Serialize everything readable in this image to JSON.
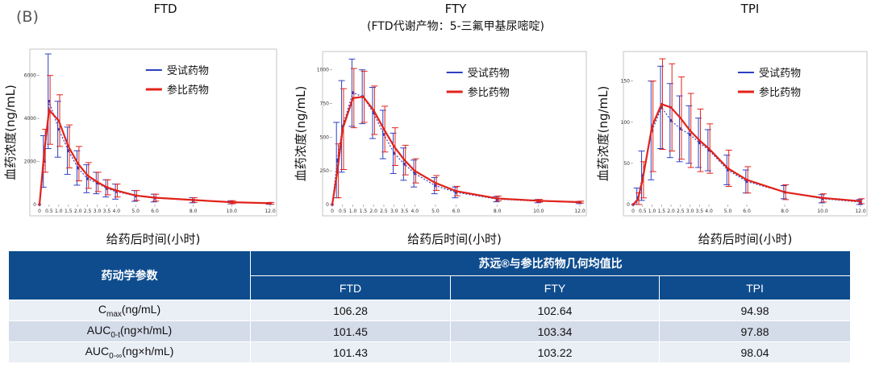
{
  "panel_label": "(B)",
  "chart_data": [
    {
      "type": "line",
      "title": "FTD",
      "subtitle": "",
      "xlabel": "给药后时间(小时)",
      "ylabel": "血药浓度(ng/mL)",
      "xlim": [
        0,
        12
      ],
      "ylim": [
        0,
        7000
      ],
      "xticks": [
        "0",
        "0.5",
        "1.0",
        "1.5",
        "2.0",
        "2.5",
        "3.0",
        "3.5",
        "4.0",
        "5.0",
        "6.0",
        "8.0",
        "10.0",
        "12.0"
      ],
      "yticks": [
        "0",
        "2000",
        "4000",
        "6000"
      ],
      "legend_position": "top-right",
      "series": [
        {
          "name": "受试药物",
          "color": "#2d3fc2",
          "x": [
            0,
            0.25,
            0.5,
            1.0,
            1.5,
            2.0,
            2.5,
            3.0,
            3.5,
            4.0,
            5.0,
            6.0,
            8.0,
            10.0,
            12.0
          ],
          "y": [
            0,
            2000,
            4800,
            3500,
            2500,
            1700,
            1200,
            1000,
            750,
            600,
            400,
            300,
            200,
            100,
            50
          ],
          "err": [
            0,
            1200,
            2200,
            1300,
            1100,
            800,
            650,
            500,
            400,
            350,
            250,
            180,
            120,
            70,
            40
          ]
        },
        {
          "name": "参比药物",
          "color": "#e2231a",
          "x": [
            0,
            0.25,
            0.5,
            1.0,
            1.5,
            2.0,
            2.5,
            3.0,
            3.5,
            4.0,
            5.0,
            6.0,
            8.0,
            10.0,
            12.0
          ],
          "y": [
            0,
            2500,
            4400,
            3900,
            2700,
            1900,
            1350,
            1050,
            800,
            650,
            420,
            320,
            210,
            110,
            60
          ],
          "err": [
            0,
            1000,
            1600,
            1200,
            1000,
            800,
            600,
            450,
            350,
            300,
            230,
            160,
            110,
            70,
            40
          ]
        }
      ]
    },
    {
      "type": "line",
      "title": "FTY",
      "subtitle": "(FTD代谢产物：5-三氟甲基尿嘧啶)",
      "xlabel": "给药后时间(小时)",
      "ylabel": "血药浓度(ng/mL)",
      "xlim": [
        0,
        12
      ],
      "ylim": [
        0,
        1100
      ],
      "xticks": [
        "0",
        "0.5",
        "1.0",
        "1.5",
        "2.0",
        "2.5",
        "3.0",
        "3.5",
        "4.0",
        "5.0",
        "6.0",
        "8.0",
        "10.0",
        "12.0"
      ],
      "yticks": [
        "0",
        "250",
        "500",
        "750",
        "1000"
      ],
      "legend_position": "top-right",
      "series": [
        {
          "name": "受试药物",
          "color": "#2d3fc2",
          "x": [
            0,
            0.25,
            0.5,
            1.0,
            1.5,
            2.0,
            2.5,
            3.0,
            3.5,
            4.0,
            5.0,
            6.0,
            8.0,
            10.0,
            12.0
          ],
          "y": [
            0,
            330,
            580,
            830,
            800,
            680,
            520,
            380,
            300,
            230,
            140,
            90,
            40,
            25,
            15
          ],
          "err": [
            0,
            280,
            340,
            250,
            200,
            190,
            180,
            150,
            120,
            100,
            60,
            40,
            20,
            12,
            8
          ]
        },
        {
          "name": "参比药物",
          "color": "#e2231a",
          "x": [
            0,
            0.25,
            0.5,
            1.0,
            1.5,
            2.0,
            2.5,
            3.0,
            3.5,
            4.0,
            5.0,
            6.0,
            8.0,
            10.0,
            12.0
          ],
          "y": [
            0,
            250,
            560,
            790,
            800,
            700,
            560,
            430,
            330,
            250,
            160,
            100,
            45,
            28,
            18
          ],
          "err": [
            0,
            200,
            300,
            220,
            190,
            180,
            170,
            140,
            110,
            90,
            55,
            35,
            18,
            10,
            7
          ]
        }
      ]
    },
    {
      "type": "line",
      "title": "TPI",
      "subtitle": "",
      "xlabel": "给药后时间(小时)",
      "ylabel": "血药浓度(ng/mL)",
      "xlim": [
        0,
        12
      ],
      "ylim": [
        0,
        180
      ],
      "xticks": [
        "0",
        "0.5",
        "1.0",
        "1.5",
        "2.0",
        "2.5",
        "3.0",
        "3.5",
        "4.0",
        "5.0",
        "6.0",
        "8.0",
        "10.0",
        "12.0"
      ],
      "yticks": [
        "0",
        "50",
        "100",
        "150"
      ],
      "legend_position": "top-right",
      "series": [
        {
          "name": "受试药物",
          "color": "#2d3fc2",
          "x": [
            0,
            0.25,
            0.5,
            1.0,
            1.5,
            2.0,
            2.5,
            3.0,
            3.5,
            4.0,
            5.0,
            6.0,
            8.0,
            10.0,
            12.0
          ],
          "y": [
            0,
            8,
            35,
            90,
            118,
            102,
            92,
            85,
            75,
            66,
            42,
            28,
            15,
            7,
            3
          ],
          "err": [
            0,
            12,
            30,
            60,
            50,
            45,
            40,
            35,
            30,
            25,
            18,
            14,
            8,
            5,
            3
          ]
        },
        {
          "name": "参比药物",
          "color": "#e2231a",
          "x": [
            0,
            0.25,
            0.5,
            1.0,
            1.5,
            2.0,
            2.5,
            3.0,
            3.5,
            4.0,
            5.0,
            6.0,
            8.0,
            10.0,
            12.0
          ],
          "y": [
            0,
            6,
            30,
            95,
            122,
            118,
            105,
            90,
            78,
            68,
            44,
            30,
            15,
            8,
            4
          ],
          "err": [
            0,
            8,
            22,
            55,
            55,
            53,
            50,
            45,
            38,
            30,
            22,
            16,
            9,
            5,
            3
          ]
        }
      ]
    }
  ],
  "table": {
    "row_header": "药动学参数",
    "group_header": "苏远®与参比药物几何均值比",
    "columns": [
      "FTD",
      "FTY",
      "TPI"
    ],
    "rows": [
      {
        "param_main": "C",
        "param_sub": "max",
        "param_tail": "(ng/mL)",
        "values": [
          "106.28",
          "102.64",
          "94.98"
        ]
      },
      {
        "param_main": "AUC",
        "param_sub": "0-t",
        "param_tail": "(ng×h/mL)",
        "values": [
          "101.45",
          "103.34",
          "97.88"
        ]
      },
      {
        "param_main": "AUC",
        "param_sub": "0-∞",
        "param_tail": "(ng×h/mL)",
        "values": [
          "101.43",
          "103.22",
          "98.04"
        ]
      }
    ]
  }
}
